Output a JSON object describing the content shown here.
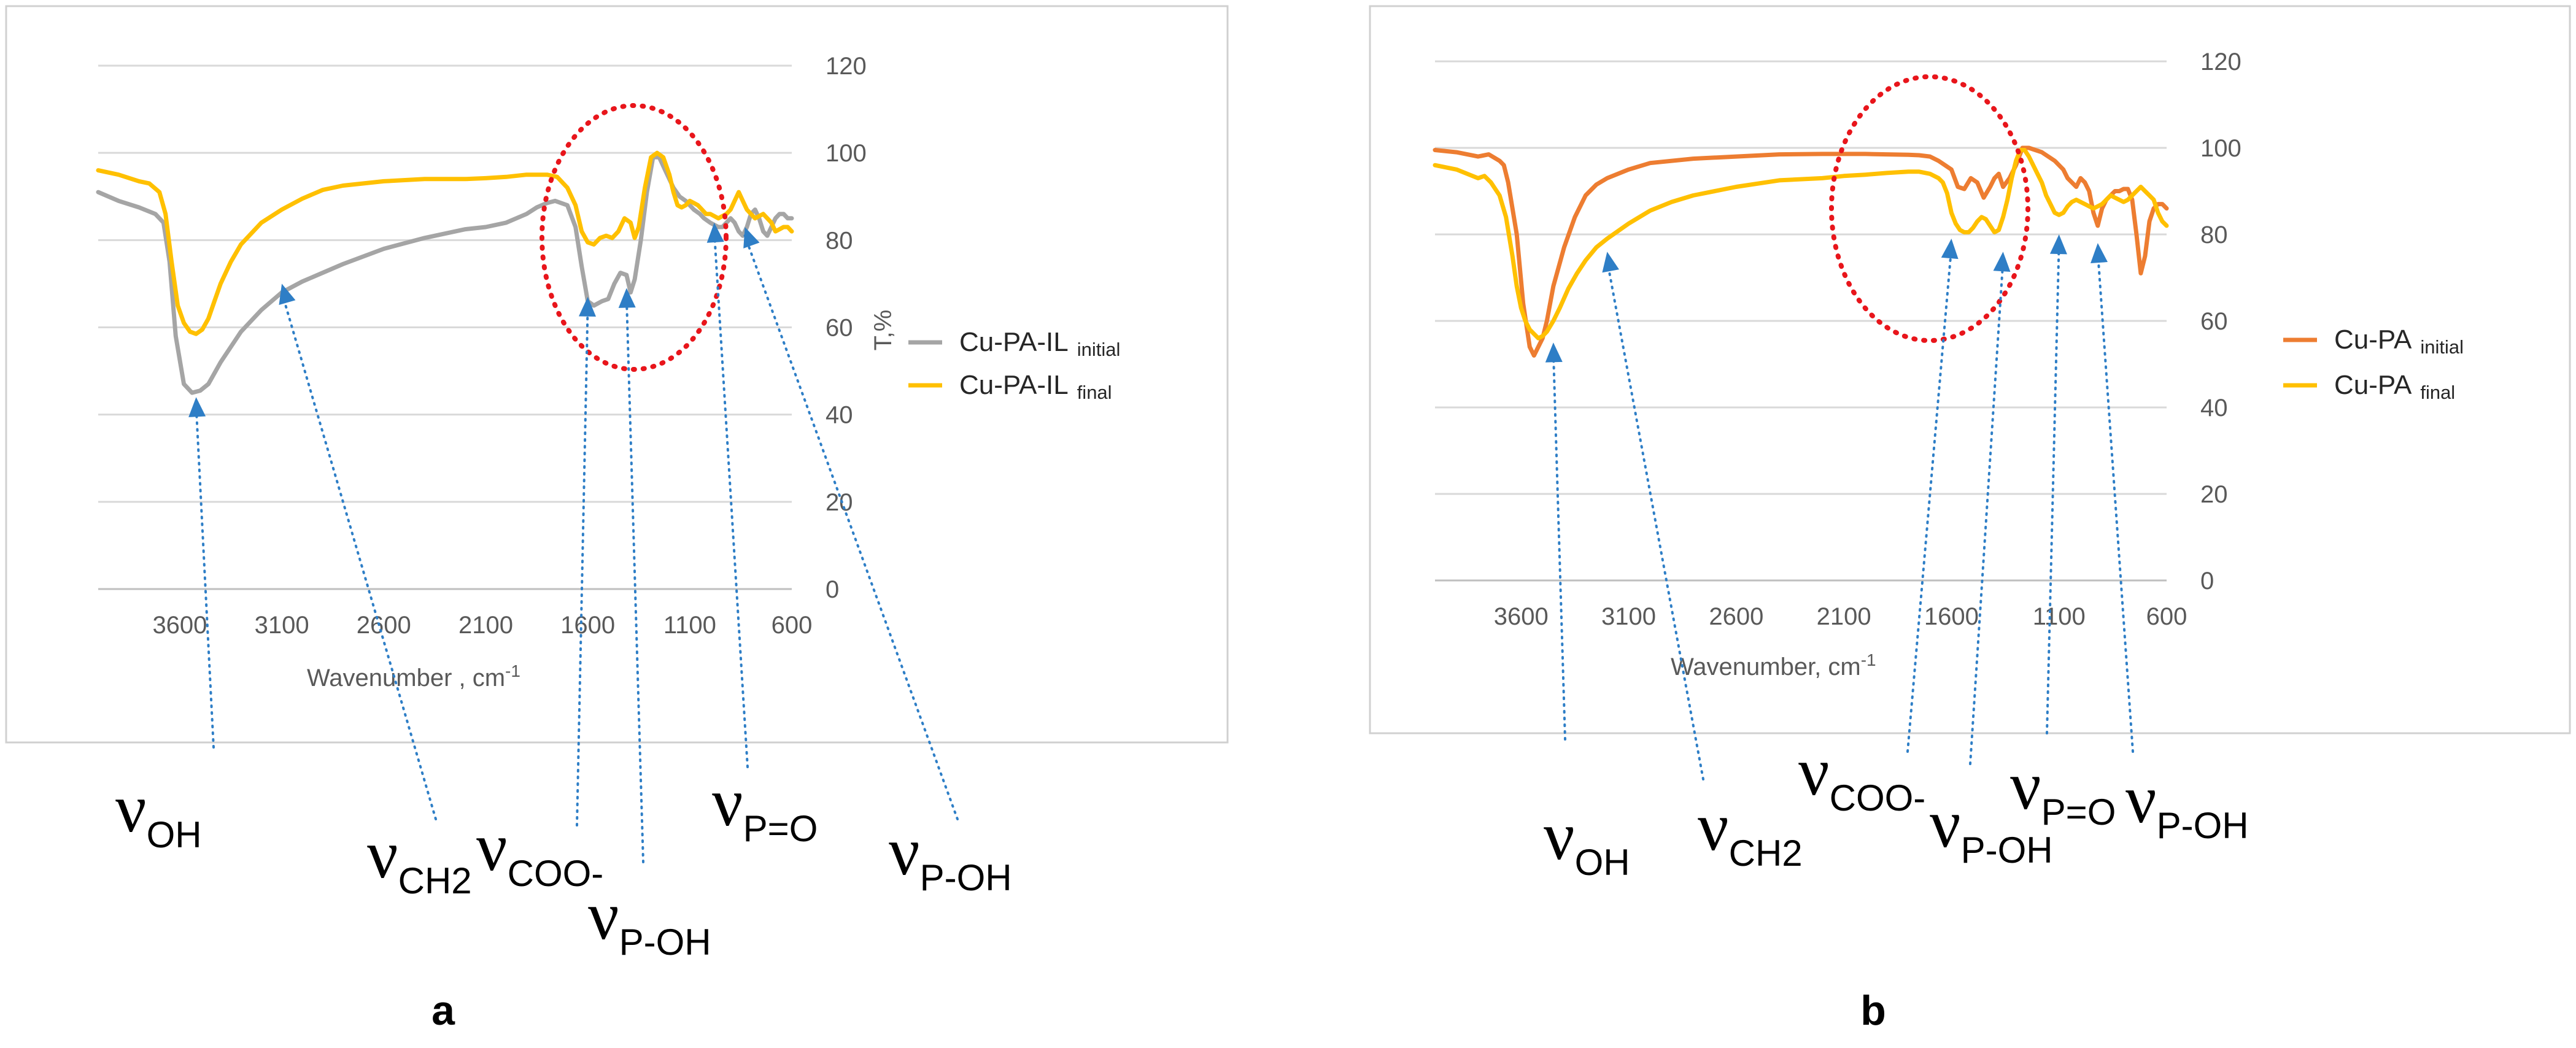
{
  "chart_data": [
    {
      "type": "line",
      "panel_label": "a",
      "xlabel": "Wavenumber  , cm",
      "xlabel_sup": "-1",
      "ylabel": "T,%",
      "xlim": [
        4000,
        600
      ],
      "xticks": [
        3600,
        3100,
        2600,
        2100,
        1600,
        1100,
        600
      ],
      "xtick_labels": [
        "3600",
        "3100",
        "2600",
        "2100",
        "1600",
        "1100",
        "600"
      ],
      "ylim": [
        0,
        120
      ],
      "yticks": [
        0,
        20,
        40,
        60,
        80,
        100,
        120
      ],
      "ytick_labels": [
        "0",
        "20",
        "40",
        "60",
        "80",
        "100",
        "120"
      ],
      "legend_position": "right",
      "series": [
        {
          "name": "Cu-PA-IL",
          "name_sub": "initial",
          "color": "#a5a5a5",
          "x": [
            4000,
            3900,
            3800,
            3720,
            3680,
            3650,
            3620,
            3580,
            3540,
            3500,
            3460,
            3400,
            3300,
            3200,
            3100,
            3000,
            2900,
            2800,
            2600,
            2400,
            2200,
            2100,
            2000,
            1900,
            1850,
            1800,
            1760,
            1700,
            1660,
            1630,
            1600,
            1570,
            1530,
            1500,
            1470,
            1440,
            1410,
            1390,
            1370,
            1340,
            1310,
            1280,
            1250,
            1220,
            1180,
            1150,
            1120,
            1100,
            1080,
            1050,
            1030,
            1000,
            980,
            960,
            940,
            920,
            900,
            880,
            860,
            840,
            820,
            800,
            780,
            760,
            740,
            720,
            700,
            680,
            660,
            640,
            620,
            600
          ],
          "y": [
            91,
            89,
            87.5,
            86,
            84,
            75,
            58,
            47,
            45,
            45.5,
            47,
            52,
            59,
            64,
            68,
            70.5,
            72.5,
            74.5,
            78,
            80.5,
            82.5,
            83,
            84,
            86,
            87.5,
            88.5,
            89,
            88,
            83,
            74,
            66,
            65,
            66,
            66.5,
            70,
            72.5,
            72,
            68,
            71,
            80,
            91,
            99,
            99,
            96,
            92,
            90,
            89,
            88,
            87,
            86,
            85,
            84,
            83.5,
            83,
            83,
            84,
            85,
            84,
            82,
            81,
            83,
            86,
            87,
            85,
            82,
            81,
            83,
            85,
            86,
            86,
            85,
            85
          ]
        },
        {
          "name": "Cu-PA-IL",
          "name_sub": "final",
          "color": "#ffc000",
          "x": [
            4000,
            3900,
            3800,
            3750,
            3700,
            3670,
            3640,
            3610,
            3580,
            3550,
            3520,
            3490,
            3460,
            3430,
            3400,
            3350,
            3300,
            3200,
            3100,
            3000,
            2900,
            2800,
            2600,
            2400,
            2200,
            2100,
            2000,
            1900,
            1800,
            1750,
            1700,
            1660,
            1630,
            1600,
            1570,
            1540,
            1510,
            1480,
            1450,
            1420,
            1390,
            1370,
            1350,
            1320,
            1290,
            1260,
            1230,
            1200,
            1180,
            1160,
            1140,
            1120,
            1100,
            1080,
            1060,
            1040,
            1020,
            1000,
            980,
            960,
            940,
            920,
            900,
            880,
            860,
            840,
            820,
            800,
            780,
            760,
            740,
            720,
            700,
            680,
            660,
            640,
            620,
            600
          ],
          "y": [
            96,
            95,
            93.5,
            93,
            91,
            86,
            75,
            65,
            61,
            59,
            58.5,
            59.5,
            62,
            66,
            70,
            75,
            79,
            84,
            87,
            89.5,
            91.5,
            92.5,
            93.5,
            94,
            94,
            94.2,
            94.5,
            95,
            95,
            94.5,
            92,
            88,
            82,
            79.5,
            79,
            80.5,
            81,
            80.5,
            82,
            85,
            84,
            80.5,
            83,
            92,
            99,
            100,
            99,
            95,
            91,
            88,
            87.5,
            88,
            89,
            88.5,
            88,
            87,
            86,
            86,
            85.5,
            85,
            85.5,
            86,
            87,
            89,
            91,
            89,
            87,
            86,
            85,
            85.5,
            86,
            85,
            84,
            82,
            82.5,
            83,
            83,
            82
          ]
        }
      ],
      "region_label": "",
      "annotations": [
        {
          "symbol": "ν",
          "sub": "OH"
        },
        {
          "symbol": "ν",
          "sub": "CH2"
        },
        {
          "symbol": "ν",
          "sub": "COO-"
        },
        {
          "symbol": "ν",
          "sub": "P-OH"
        },
        {
          "symbol": "ν",
          "sub": "P=O"
        },
        {
          "symbol": "ν",
          "sub": "P-OH"
        }
      ]
    },
    {
      "type": "line",
      "panel_label": "b",
      "xlabel": "Wavenumber, cm",
      "xlabel_sup": "-1",
      "ylabel": "",
      "xlim": [
        4000,
        600
      ],
      "xticks": [
        3600,
        3100,
        2600,
        2100,
        1600,
        1100,
        600
      ],
      "xtick_labels": [
        "3600",
        "3100",
        "2600",
        "2100",
        "1600",
        "1100",
        "600"
      ],
      "ylim": [
        0,
        120
      ],
      "yticks": [
        0,
        20,
        40,
        60,
        80,
        100,
        120
      ],
      "ytick_labels": [
        "0",
        "20",
        "40",
        "60",
        "80",
        "100",
        "120"
      ],
      "legend_position": "right",
      "series": [
        {
          "name": "Cu-PA",
          "name_sub": "initial",
          "color": "#ed7d31",
          "x": [
            4000,
            3900,
            3800,
            3750,
            3700,
            3680,
            3660,
            3620,
            3590,
            3560,
            3540,
            3520,
            3500,
            3480,
            3450,
            3400,
            3350,
            3300,
            3250,
            3200,
            3100,
            3000,
            2800,
            2600,
            2400,
            2200,
            2100,
            2000,
            1900,
            1800,
            1750,
            1700,
            1660,
            1630,
            1600,
            1570,
            1540,
            1510,
            1480,
            1450,
            1420,
            1400,
            1380,
            1360,
            1330,
            1300,
            1270,
            1240,
            1210,
            1180,
            1150,
            1120,
            1100,
            1080,
            1060,
            1040,
            1020,
            1000,
            980,
            960,
            940,
            920,
            900,
            880,
            860,
            840,
            820,
            800,
            780,
            760,
            740,
            720,
            700,
            680,
            660,
            640,
            620,
            600
          ],
          "y": [
            99.5,
            99,
            98,
            98.5,
            97,
            96,
            92,
            80,
            64,
            54,
            52,
            54,
            56,
            60,
            68,
            77,
            84,
            89,
            91.5,
            93,
            95,
            96.5,
            97.5,
            98,
            98.5,
            98.6,
            98.6,
            98.6,
            98.5,
            98.4,
            98.3,
            98,
            97,
            96,
            95,
            91,
            90.5,
            93,
            92,
            88.5,
            91,
            93,
            94,
            91,
            93,
            96,
            100,
            100,
            99.5,
            99,
            98,
            97,
            96,
            95,
            93,
            92,
            91,
            93,
            92,
            90,
            85,
            82,
            86,
            88,
            89,
            90,
            90,
            90.5,
            90.5,
            88,
            80,
            71,
            75,
            83,
            86,
            87,
            87,
            86
          ]
        },
        {
          "name": "Cu-PA",
          "name_sub": "final",
          "color": "#ffc000",
          "x": [
            4000,
            3900,
            3800,
            3770,
            3740,
            3700,
            3670,
            3640,
            3620,
            3600,
            3580,
            3560,
            3540,
            3520,
            3500,
            3480,
            3450,
            3420,
            3380,
            3340,
            3300,
            3250,
            3200,
            3100,
            3000,
            2900,
            2800,
            2600,
            2400,
            2200,
            2100,
            2000,
            1900,
            1800,
            1750,
            1700,
            1660,
            1640,
            1620,
            1600,
            1580,
            1560,
            1540,
            1520,
            1500,
            1480,
            1460,
            1440,
            1420,
            1400,
            1380,
            1360,
            1340,
            1320,
            1300,
            1280,
            1260,
            1240,
            1220,
            1200,
            1180,
            1160,
            1140,
            1120,
            1100,
            1080,
            1060,
            1040,
            1020,
            1000,
            980,
            960,
            940,
            920,
            900,
            880,
            860,
            840,
            820,
            800,
            780,
            760,
            740,
            720,
            700,
            680,
            660,
            640,
            620,
            600
          ],
          "y": [
            96,
            95,
            93,
            93.5,
            92,
            89,
            84,
            75,
            68,
            63,
            60,
            58,
            57,
            56,
            56.5,
            57.5,
            60,
            63,
            67.5,
            71,
            74,
            77,
            79,
            82.5,
            85.5,
            87.5,
            89,
            91,
            92.5,
            93,
            93.5,
            93.8,
            94.2,
            94.5,
            94.5,
            94,
            93,
            92,
            89.5,
            85,
            82.5,
            81,
            80.5,
            80.5,
            81.5,
            83,
            84,
            83.5,
            82,
            80.5,
            81,
            84,
            88,
            93,
            97,
            99.5,
            99.5,
            98,
            96,
            94,
            92,
            89,
            87,
            85,
            84.5,
            85,
            86.5,
            87.5,
            88,
            87.5,
            87,
            86.5,
            86,
            86.5,
            87,
            88,
            89,
            88.5,
            88,
            87.5,
            88,
            89,
            90,
            91,
            90,
            89,
            88,
            85,
            83,
            82
          ]
        }
      ],
      "annotations": [
        {
          "symbol": "ν",
          "sub": "OH"
        },
        {
          "symbol": "ν",
          "sub": "CH2"
        },
        {
          "symbol": "ν",
          "sub": "COO-"
        },
        {
          "symbol": "ν",
          "sub": "P-OH"
        },
        {
          "symbol": "ν",
          "sub": "P=O"
        },
        {
          "symbol": "ν",
          "sub": "P-OH"
        }
      ]
    }
  ]
}
